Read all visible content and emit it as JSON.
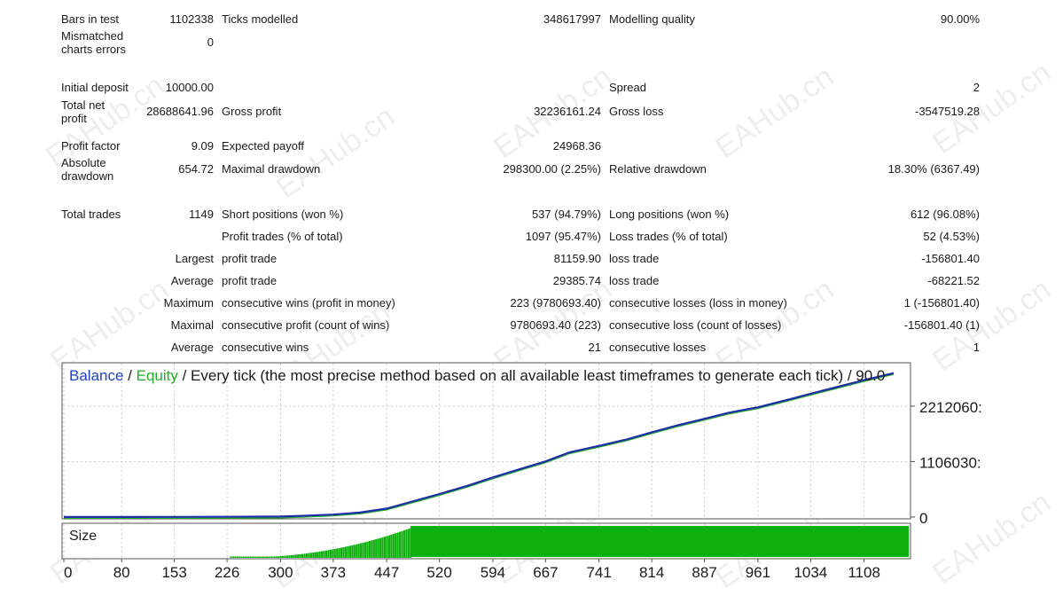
{
  "report": {
    "rows": [
      {
        "l": "Bars in test",
        "v": "1102338",
        "ml": "Ticks modelled",
        "mv": "348617997",
        "rl": "Modelling quality",
        "rv": "90.00%"
      },
      {
        "l1": "Mismatched",
        "l2": "charts errors",
        "v": "0"
      },
      {
        "l": "Initial deposit",
        "v": "10000.00",
        "rl": "Spread",
        "rv": "2"
      },
      {
        "l1": "Total net",
        "l2": "profit",
        "v": "28688641.96",
        "ml": "Gross profit",
        "mv": "32236161.24",
        "rl": "Gross loss",
        "rv": "-3547519.28"
      },
      {
        "l": "Profit factor",
        "v": "9.09",
        "ml": "Expected payoff",
        "mv": "24968.36"
      },
      {
        "l1": "Absolute",
        "l2": "drawdown",
        "v": "654.72",
        "ml": "Maximal drawdown",
        "mv": "298300.00 (2.25%)",
        "rl": "Relative drawdown",
        "rv": "18.30% (6367.49)"
      },
      {
        "l": "Total trades",
        "v": "1149",
        "ml": "Short positions (won %)",
        "mv": "537 (94.79%)",
        "rl": "Long positions (won %)",
        "rv": "612 (96.08%)"
      },
      {
        "ml": "Profit trades (% of total)",
        "mv": "1097 (95.47%)",
        "rl": "Loss trades (% of total)",
        "rv": "52 (4.53%)"
      },
      {
        "v": "Largest",
        "ml": "profit trade",
        "mv": "81159.90",
        "rl": "loss trade",
        "rv": "-156801.40"
      },
      {
        "v": "Average",
        "ml": "profit trade",
        "mv": "29385.74",
        "rl": "loss trade",
        "rv": "-68221.52"
      },
      {
        "v": "Maximum",
        "ml": "consecutive wins (profit in money)",
        "mv": "223 (9780693.40)",
        "rl": "consecutive losses (loss in money)",
        "rv": "1 (-156801.40)"
      },
      {
        "v": "Maximal",
        "ml": "consecutive profit (count of wins)",
        "mv": "9780693.40 (223)",
        "rl": "consecutive loss (count of losses)",
        "rv": "-156801.40 (1)"
      },
      {
        "v": "Average",
        "ml": "consecutive wins",
        "mv": "21",
        "rl": "consecutive losses",
        "rv": "1"
      }
    ]
  },
  "chart": {
    "title_balance": "Balance",
    "title_sep1": " / ",
    "title_equity": "Equity",
    "title_rest": " / Every tick (the most precise method based on all available least timeframes to generate each tick) / 90.0",
    "size_label": "Size",
    "colors": {
      "balance": "#1f2fa8",
      "equity": "#22b022",
      "size": "#0db00d",
      "grid": "#c8c8c8"
    }
  },
  "chart_data": {
    "type": "line",
    "series": [
      {
        "name": "Balance",
        "x": [
          0,
          80,
          153,
          226,
          300,
          330,
          373,
          410,
          447,
          480,
          520,
          560,
          594,
          630,
          667,
          700,
          741,
          780,
          814,
          850,
          887,
          920,
          961,
          1000,
          1034,
          1070,
          1108,
          1149
        ],
        "values": [
          10000,
          20000,
          40000,
          60000,
          100000,
          250000,
          500000,
          900000,
          1700000,
          3000000,
          4600000,
          6300000,
          7900000,
          9500000,
          11100000,
          12900000,
          14200000,
          15500000,
          16900000,
          18300000,
          19600000,
          20800000,
          21900000,
          23300000,
          24600000,
          25900000,
          27300000,
          28698642
        ]
      }
    ],
    "yticks": [
      "0",
      "1106030:",
      "2212060:"
    ],
    "xticks": [
      "0",
      "80",
      "153",
      "226",
      "300",
      "373",
      "447",
      "520",
      "594",
      "667",
      "741",
      "814",
      "887",
      "961",
      "1034",
      "1108"
    ],
    "ylim": [
      0,
      29000000
    ],
    "xlim": [
      0,
      1160
    ],
    "size_panel": {
      "label": "Size",
      "fill_from_trade": 480
    }
  },
  "watermark": "EAHub.cn"
}
